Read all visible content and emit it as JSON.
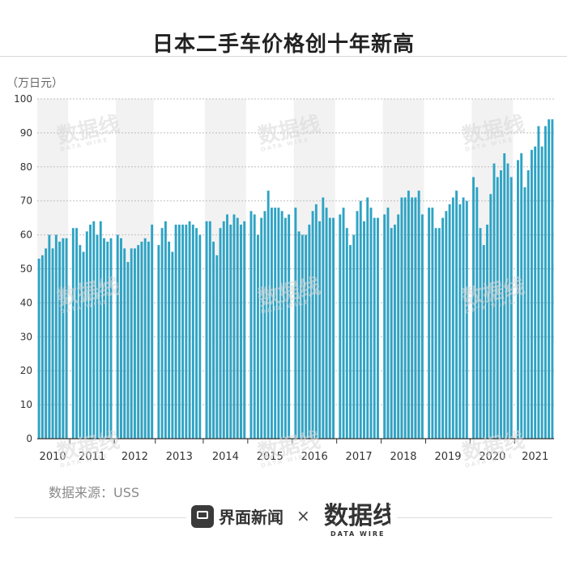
{
  "title": "日本二手车价格创十年新高",
  "unit_label": "（万日元）",
  "source": "数据来源：USS",
  "footer": {
    "brand_name": "界面新闻",
    "times": "×",
    "partner_logo": "数据线",
    "partner_sub": "DATA WIRE"
  },
  "watermark": {
    "text": "数据线",
    "sub": "DATA WIRE"
  },
  "colors": {
    "bar": "#2ea3c4",
    "band": "#f2f2f2",
    "grid": "#bdbdbd",
    "axis": "#333333"
  },
  "chart_data": {
    "type": "bar",
    "title": "日本二手车价格创十年新高",
    "ylabel": "（万日元）",
    "xlabel": "",
    "ylim": [
      0,
      100
    ],
    "yticks": [
      0,
      10,
      20,
      30,
      40,
      50,
      60,
      70,
      80,
      90,
      100
    ],
    "grid": true,
    "years": [
      {
        "label": "2010",
        "values": [
          53,
          54,
          56,
          60,
          56,
          60,
          58,
          59,
          59
        ]
      },
      {
        "label": "2011",
        "values": [
          62,
          62,
          57,
          55,
          61,
          63,
          64,
          60,
          64,
          59,
          58,
          59
        ]
      },
      {
        "label": "2012",
        "values": [
          60,
          59,
          56,
          52,
          56,
          56,
          57,
          58,
          59,
          58,
          63
        ]
      },
      {
        "label": "2013",
        "values": [
          57,
          62,
          64,
          58,
          55,
          63,
          63,
          63,
          63,
          64,
          63,
          62,
          60
        ]
      },
      {
        "label": "2014",
        "values": [
          64,
          64,
          58,
          54,
          62,
          64,
          66,
          63,
          66,
          65,
          63,
          64
        ]
      },
      {
        "label": "2015",
        "values": [
          67,
          66,
          60,
          65,
          67,
          73,
          68,
          68,
          68,
          67,
          65,
          66
        ]
      },
      {
        "label": "2016",
        "values": [
          68,
          61,
          60,
          60,
          63,
          67,
          69,
          64,
          71,
          68,
          65,
          65
        ]
      },
      {
        "label": "2017",
        "values": [
          66,
          68,
          62,
          57,
          60,
          67,
          70,
          64,
          71,
          68,
          65,
          65
        ]
      },
      {
        "label": "2018",
        "values": [
          66,
          68,
          62,
          63,
          66,
          71,
          71,
          73,
          71,
          71,
          73,
          66
        ]
      },
      {
        "label": "2019",
        "values": [
          68,
          68,
          62,
          62,
          65,
          67,
          69,
          71,
          73,
          69,
          71,
          70
        ]
      },
      {
        "label": "2020",
        "values": [
          77,
          74,
          62,
          57,
          63,
          72,
          81,
          77,
          79,
          84,
          81,
          77
        ]
      },
      {
        "label": "2021",
        "values": [
          82,
          84,
          74,
          79,
          85,
          86,
          92,
          86,
          92,
          94,
          94
        ]
      }
    ]
  }
}
